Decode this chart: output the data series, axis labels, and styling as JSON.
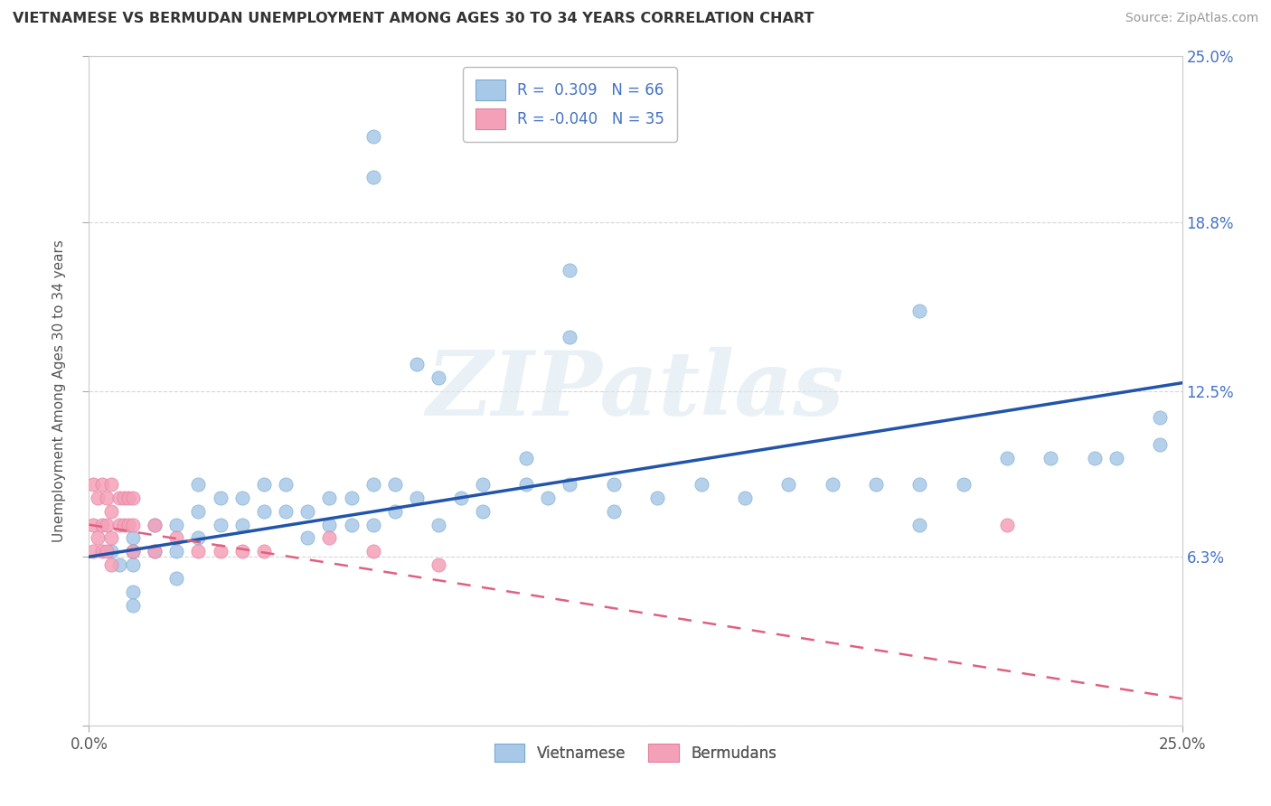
{
  "title": "VIETNAMESE VS BERMUDAN UNEMPLOYMENT AMONG AGES 30 TO 34 YEARS CORRELATION CHART",
  "source": "Source: ZipAtlas.com",
  "ylabel": "Unemployment Among Ages 30 to 34 years",
  "xlim": [
    0,
    0.25
  ],
  "ylim": [
    0,
    0.25
  ],
  "xtick_positions": [
    0.0,
    0.25
  ],
  "xtick_labels": [
    "0.0%",
    "25.0%"
  ],
  "ytick_positions": [
    0.0,
    0.063,
    0.125,
    0.188,
    0.25
  ],
  "ytick_labels_right": [
    "",
    "6.3%",
    "12.5%",
    "18.8%",
    "25.0%"
  ],
  "legend_r_vietnamese": "0.309",
  "legend_n_vietnamese": "66",
  "legend_r_bermudan": "-0.040",
  "legend_n_bermudan": "35",
  "vietnamese_color": "#a8c8e8",
  "bermudan_color": "#f4a0b8",
  "line_vietnamese_color": "#2255aa",
  "line_bermudan_color": "#e06080",
  "watermark_text": "ZIPatlas",
  "viet_line_x0": 0.0,
  "viet_line_y0": 0.063,
  "viet_line_x1": 0.25,
  "viet_line_y1": 0.128,
  "berm_line_x0": 0.0,
  "berm_line_y0": 0.075,
  "berm_line_x1": 0.25,
  "berm_line_y1": 0.01,
  "viet_x": [
    0.065,
    0.065,
    0.11,
    0.11,
    0.19,
    0.075,
    0.08,
    0.19,
    0.005,
    0.007,
    0.01,
    0.01,
    0.01,
    0.01,
    0.01,
    0.015,
    0.015,
    0.02,
    0.02,
    0.02,
    0.025,
    0.025,
    0.025,
    0.03,
    0.03,
    0.035,
    0.035,
    0.04,
    0.04,
    0.045,
    0.045,
    0.05,
    0.05,
    0.055,
    0.055,
    0.06,
    0.06,
    0.065,
    0.065,
    0.07,
    0.07,
    0.075,
    0.08,
    0.085,
    0.09,
    0.09,
    0.1,
    0.1,
    0.105,
    0.11,
    0.12,
    0.12,
    0.13,
    0.14,
    0.15,
    0.16,
    0.17,
    0.18,
    0.19,
    0.2,
    0.21,
    0.22,
    0.23,
    0.235,
    0.245,
    0.245
  ],
  "viet_y": [
    0.205,
    0.22,
    0.17,
    0.145,
    0.155,
    0.135,
    0.13,
    0.075,
    0.065,
    0.06,
    0.07,
    0.065,
    0.06,
    0.05,
    0.045,
    0.075,
    0.065,
    0.075,
    0.065,
    0.055,
    0.09,
    0.08,
    0.07,
    0.085,
    0.075,
    0.085,
    0.075,
    0.09,
    0.08,
    0.09,
    0.08,
    0.08,
    0.07,
    0.085,
    0.075,
    0.085,
    0.075,
    0.09,
    0.075,
    0.09,
    0.08,
    0.085,
    0.075,
    0.085,
    0.09,
    0.08,
    0.1,
    0.09,
    0.085,
    0.09,
    0.09,
    0.08,
    0.085,
    0.09,
    0.085,
    0.09,
    0.09,
    0.09,
    0.09,
    0.09,
    0.1,
    0.1,
    0.1,
    0.1,
    0.105,
    0.115
  ],
  "berm_x": [
    0.001,
    0.001,
    0.001,
    0.002,
    0.002,
    0.003,
    0.003,
    0.003,
    0.004,
    0.004,
    0.004,
    0.005,
    0.005,
    0.005,
    0.005,
    0.007,
    0.007,
    0.008,
    0.008,
    0.009,
    0.009,
    0.01,
    0.01,
    0.01,
    0.015,
    0.015,
    0.02,
    0.025,
    0.03,
    0.035,
    0.04,
    0.055,
    0.065,
    0.08,
    0.21
  ],
  "berm_y": [
    0.09,
    0.075,
    0.065,
    0.085,
    0.07,
    0.09,
    0.075,
    0.065,
    0.085,
    0.075,
    0.065,
    0.09,
    0.08,
    0.07,
    0.06,
    0.085,
    0.075,
    0.085,
    0.075,
    0.085,
    0.075,
    0.085,
    0.075,
    0.065,
    0.075,
    0.065,
    0.07,
    0.065,
    0.065,
    0.065,
    0.065,
    0.07,
    0.065,
    0.06,
    0.075
  ]
}
